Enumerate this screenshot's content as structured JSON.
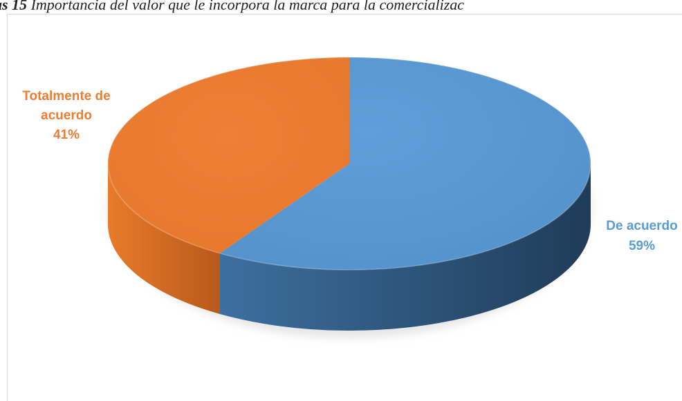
{
  "caption": {
    "prefix": "as 15",
    "text": " Importancia del valor que le incorpora la marca para la comercializac"
  },
  "chart_data": {
    "type": "pie",
    "slices": [
      {
        "label": "De acuerdo",
        "percent_label": "59%",
        "value": 59,
        "color": "#5b9bd5"
      },
      {
        "label": "Totalmente de acuerdo",
        "percent_label": "41%",
        "value": 41,
        "color": "#ed7d31"
      }
    ],
    "labels": {
      "de_acuerdo": {
        "line1": "De acuerdo",
        "pct": "59%"
      },
      "totalmente": {
        "line1": "Totalmente de",
        "line2": "acuerdo",
        "pct": "41%"
      }
    }
  }
}
